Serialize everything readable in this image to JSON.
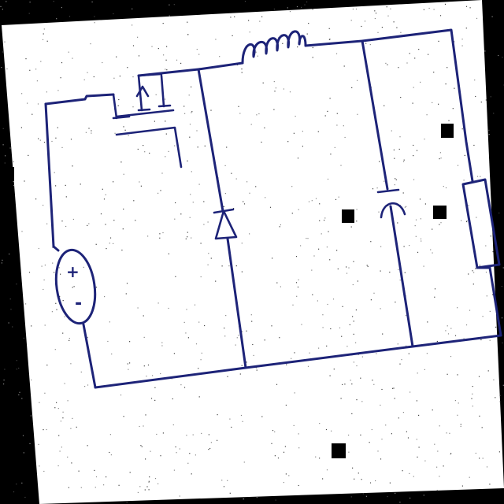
{
  "page": {
    "background": "#000000",
    "paper_color": "#ffffff",
    "ink_color": "#1d2378",
    "artifact_color": "#000000"
  },
  "diagram": {
    "kind": "hand-drawn circuit schematic",
    "components": [
      {
        "id": "source",
        "type": "dc-voltage-source",
        "icon": "battery-source-icon",
        "plus_label": "+",
        "minus_label": "-"
      },
      {
        "id": "switch",
        "type": "mosfet",
        "icon": "mosfet-icon"
      },
      {
        "id": "inductor",
        "type": "inductor",
        "icon": "inductor-icon"
      },
      {
        "id": "diode",
        "type": "diode",
        "icon": "diode-icon"
      },
      {
        "id": "capacitor",
        "type": "polarized-capacitor",
        "icon": "capacitor-icon"
      },
      {
        "id": "load",
        "type": "resistor",
        "icon": "resistor-icon"
      }
    ]
  }
}
